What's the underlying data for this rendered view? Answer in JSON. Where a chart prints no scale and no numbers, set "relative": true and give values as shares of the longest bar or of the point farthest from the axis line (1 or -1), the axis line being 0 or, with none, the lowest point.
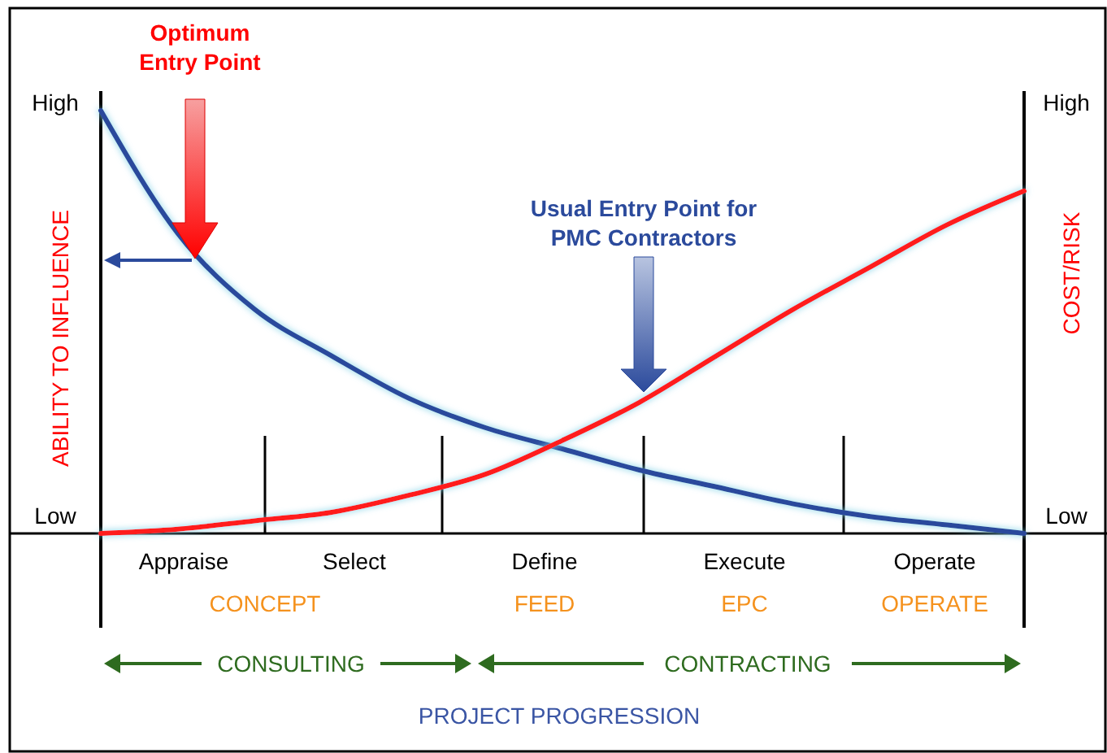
{
  "chart_data": {
    "type": "line",
    "relative": true,
    "ylabel": "ABILITY TO INFLUENCE",
    "y2label": "COST/RISK",
    "categories": [
      null,
      null,
      null,
      null,
      null,
      null,
      null,
      null,
      null,
      null,
      null,
      null,
      null
    ],
    "series": [
      {
        "color": "#2b4a9c",
        "values": [
          1.0,
          0.71,
          0.53,
          0.42,
          0.32,
          0.25,
          0.2,
          0.15,
          0.11,
          0.07,
          0.04,
          0.02,
          0.0
        ]
      },
      {
        "color": "#ff1a1a",
        "values": [
          0.0,
          0.01,
          0.03,
          0.05,
          0.09,
          0.14,
          0.22,
          0.31,
          0.42,
          0.53,
          0.63,
          0.73,
          0.81
        ]
      }
    ],
    "annotations": [
      "Optimum Entry Point",
      "Usual Entry Point for PMC Contractors",
      "High",
      "Low",
      "High",
      "Low",
      "Appraise",
      "Select",
      "Define",
      "Execute",
      "Operate",
      "CONCEPT",
      "FEED",
      "EPC",
      "OPERATE",
      "CONSULTING",
      "CONTRACTING",
      "PROJECT PROGRESSION"
    ],
    "line_style": "solid"
  }
}
